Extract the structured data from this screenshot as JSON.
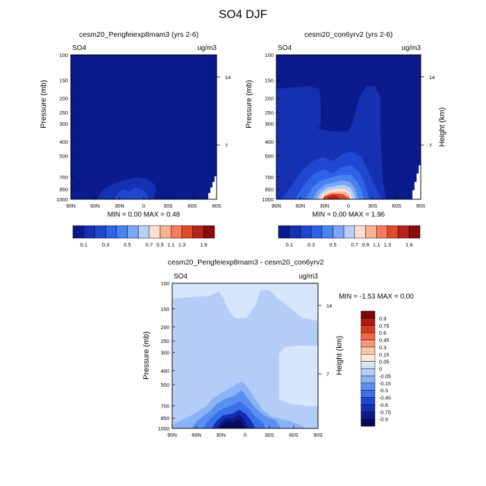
{
  "title": "SO4 DJF",
  "colors": {
    "ramp12": [
      "#0b1a8c",
      "#1530b0",
      "#1f48d0",
      "#2e62e8",
      "#4a82f0",
      "#7aa6f5",
      "#b8d0fa",
      "#fde0cc",
      "#f9b291",
      "#f17d5c",
      "#df4a2c",
      "#b9221a",
      "#8a0a0f"
    ],
    "diff_ramp": [
      "#08085e",
      "#0b1a8c",
      "#1530b0",
      "#1f48d0",
      "#3a70ec",
      "#5a8ff2",
      "#8cb2f6",
      "#b4cdf8",
      "#d6e6fb",
      "#fde9dc",
      "#fac6a8",
      "#f59a76",
      "#ec6a47",
      "#d93c24",
      "#b01a14",
      "#7a0a0a"
    ]
  },
  "chart_data": [
    {
      "type": "contour",
      "title": "cesm20_Pengfeiexp8mam3 (yrs 2-6)",
      "left_label": "SO4",
      "right_label": "ug/m3",
      "ylabel": "Pressure (mb)",
      "ylabel_right": "",
      "y_ticks": [
        "100",
        "150",
        "200",
        "250",
        "300",
        "400",
        "500",
        "700",
        "850",
        "1000"
      ],
      "y_ticks_right": [
        "14",
        "7"
      ],
      "x_ticks": [
        "90N",
        "60N",
        "30N",
        "0",
        "30S",
        "60S",
        "90S"
      ],
      "stats": "MIN =   0.00   MAX =   0.48",
      "colorbar_labels": [
        "0.1",
        "0.3",
        "0.5",
        "0.7",
        "0.9",
        "1.1",
        "1.3",
        "1.6"
      ]
    },
    {
      "type": "contour",
      "title": "cesm20_con6yrv2 (yrs 2-6)",
      "left_label": "SO4",
      "right_label": "ug/m3",
      "ylabel": "Pressure (mb)",
      "ylabel_right": "Height (km)",
      "y_ticks": [
        "100",
        "150",
        "200",
        "250",
        "300",
        "400",
        "500",
        "700",
        "850",
        "1000"
      ],
      "y_ticks_right": [
        "14",
        "7"
      ],
      "x_ticks": [
        "90N",
        "60N",
        "30N",
        "0",
        "30S",
        "60S",
        "90S"
      ],
      "stats": "MIN =   0.00   MAX =   1.96",
      "colorbar_labels": [
        "0.1",
        "0.3",
        "0.5",
        "0.7",
        "0.9",
        "1.1",
        "1.3",
        "1.6"
      ]
    },
    {
      "type": "contour",
      "title": "cesm20_Pengfeiexp8mam3 - cesm20_con6yrv2",
      "left_label": "SO4",
      "right_label": "ug/m3",
      "ylabel": "Pressure (mb)",
      "ylabel_right": "Height (km)",
      "y_ticks": [
        "100",
        "150",
        "200",
        "250",
        "300",
        "400",
        "500",
        "700",
        "850",
        "1000"
      ],
      "y_ticks_right": [
        "14",
        "7"
      ],
      "x_ticks": [
        "90N",
        "60N",
        "30N",
        "0",
        "30S",
        "60S",
        "90S"
      ],
      "stats": "MIN =  -1.53   MAX =   0.00",
      "colorbar_labels": [
        "0.9",
        "0.75",
        "0.6",
        "0.45",
        "0.3",
        "0.15",
        "0.05",
        "0",
        "-0.05",
        "-0.15",
        "-0.3",
        "-0.45",
        "-0.6",
        "-0.75",
        "-0.9"
      ]
    }
  ]
}
